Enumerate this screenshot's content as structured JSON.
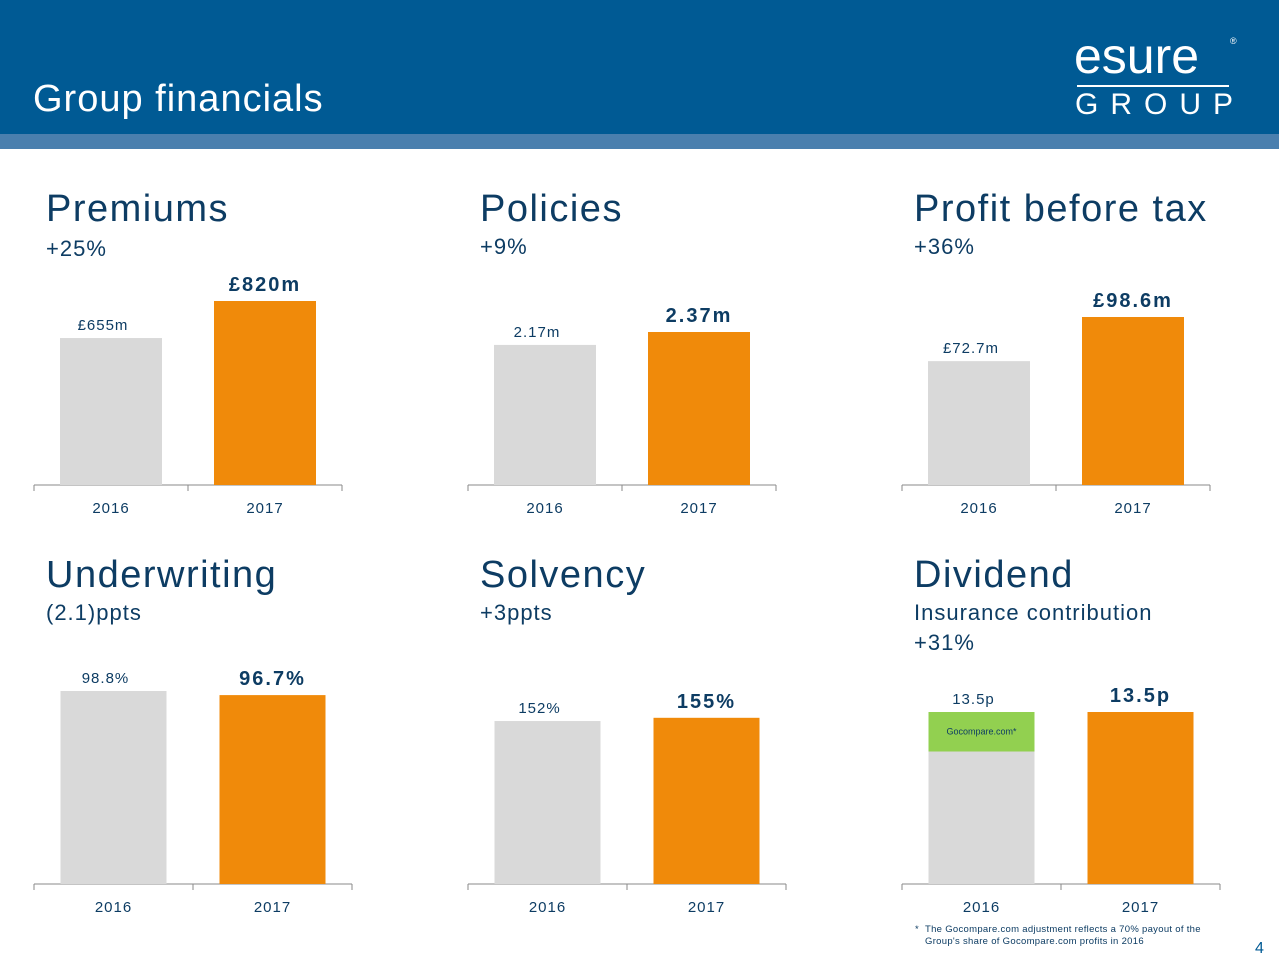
{
  "header": {
    "title": "Group financials",
    "logo": {
      "word": "esure",
      "mark": "®",
      "group": "GROUP"
    }
  },
  "colors": {
    "header": "#005a94",
    "band": "#4a7fae",
    "bar_2016": "#d9d9d9",
    "bar_2017": "#f08a0a",
    "gocompare": "#92d050",
    "text": "#0d3c63"
  },
  "panels": [
    {
      "title": "Premiums",
      "subtitle": "+25%"
    },
    {
      "title": "Policies",
      "subtitle": "+9%"
    },
    {
      "title": "Profit before tax",
      "subtitle": "+36%"
    },
    {
      "title": "Underwriting",
      "subtitle": "(2.1)ppts"
    },
    {
      "title": "Solvency",
      "subtitle": "+3ppts"
    },
    {
      "title": "Dividend",
      "subtitle": "Insurance contribution",
      "subtitle2": "+31%"
    }
  ],
  "chart_data": [
    {
      "type": "bar",
      "title": "Premiums",
      "categories": [
        "2016",
        "2017"
      ],
      "values": [
        655,
        820
      ],
      "data_labels": [
        "£655m",
        "£820m"
      ],
      "ylim": [
        0,
        820
      ]
    },
    {
      "type": "bar",
      "title": "Policies",
      "categories": [
        "2016",
        "2017"
      ],
      "values": [
        2.17,
        2.37
      ],
      "data_labels": [
        "2.17m",
        "2.37m"
      ],
      "ylim": [
        0,
        2.37
      ]
    },
    {
      "type": "bar",
      "title": "Profit before tax",
      "categories": [
        "2016",
        "2017"
      ],
      "values": [
        72.7,
        98.6
      ],
      "data_labels": [
        "£72.7m",
        "£98.6m"
      ],
      "ylim": [
        0,
        98.6
      ]
    },
    {
      "type": "bar",
      "title": "Underwriting",
      "categories": [
        "2016",
        "2017"
      ],
      "values": [
        98.8,
        96.7
      ],
      "data_labels": [
        "98.8%",
        "96.7%"
      ],
      "ylim": [
        0,
        98.8
      ]
    },
    {
      "type": "bar",
      "title": "Solvency",
      "categories": [
        "2016",
        "2017"
      ],
      "values": [
        152,
        155
      ],
      "data_labels": [
        "152%",
        "155%"
      ],
      "ylim": [
        0,
        180
      ]
    },
    {
      "type": "bar",
      "title": "Dividend",
      "categories": [
        "2016",
        "2017"
      ],
      "values": [
        13.5,
        13.5
      ],
      "data_labels": [
        "13.5p",
        "13.5p"
      ],
      "ylim": [
        0,
        13.5
      ],
      "stack_segment": {
        "category": "2016",
        "label": "Gocompare.com*",
        "value": 3.1
      }
    }
  ],
  "footnote": {
    "star": "*",
    "line1": "The Gocompare.com adjustment reflects a 70% payout of the",
    "line2": "Group's share of Gocompare.com profits in 2016"
  },
  "page_number": "4"
}
